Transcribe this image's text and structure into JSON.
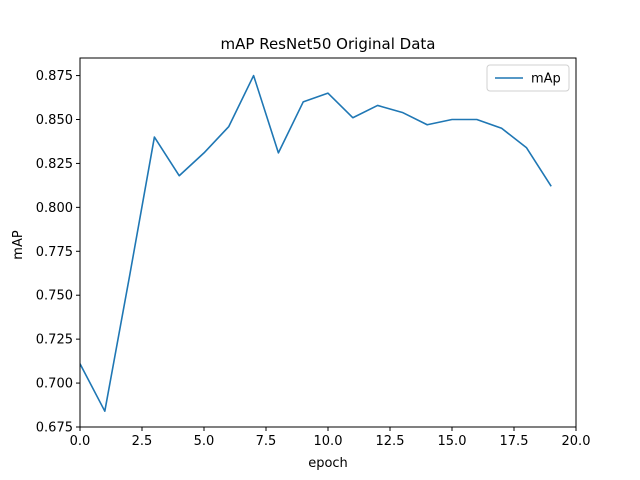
{
  "chart_data": {
    "type": "line",
    "title": "mAP ResNet50 Original Data",
    "xlabel": "epoch",
    "ylabel": "mAP",
    "xlim": [
      0,
      20
    ],
    "ylim": [
      0.675,
      0.885
    ],
    "xticks": [
      0,
      2.5,
      5,
      7.5,
      10,
      12.5,
      15,
      17.5,
      20
    ],
    "xtick_labels": [
      "0.0",
      "2.5",
      "5.0",
      "7.5",
      "10.0",
      "12.5",
      "15.0",
      "17.5",
      "20.0"
    ],
    "yticks": [
      0.675,
      0.7,
      0.725,
      0.75,
      0.775,
      0.8,
      0.825,
      0.85,
      0.875
    ],
    "ytick_labels": [
      "0.675",
      "0.700",
      "0.725",
      "0.750",
      "0.775",
      "0.800",
      "0.825",
      "0.850",
      "0.875"
    ],
    "grid": false,
    "legend_position": "top-right",
    "series": [
      {
        "name": "mAp",
        "color": "#1f77b4",
        "x": [
          0,
          1,
          2,
          3,
          4,
          5,
          6,
          7,
          8,
          9,
          10,
          11,
          12,
          13,
          14,
          15,
          16,
          17,
          18,
          19
        ],
        "values": [
          0.711,
          0.684,
          0.761,
          0.84,
          0.818,
          0.831,
          0.846,
          0.875,
          0.831,
          0.86,
          0.865,
          0.851,
          0.858,
          0.854,
          0.847,
          0.85,
          0.85,
          0.845,
          0.834,
          0.812
        ]
      }
    ]
  }
}
